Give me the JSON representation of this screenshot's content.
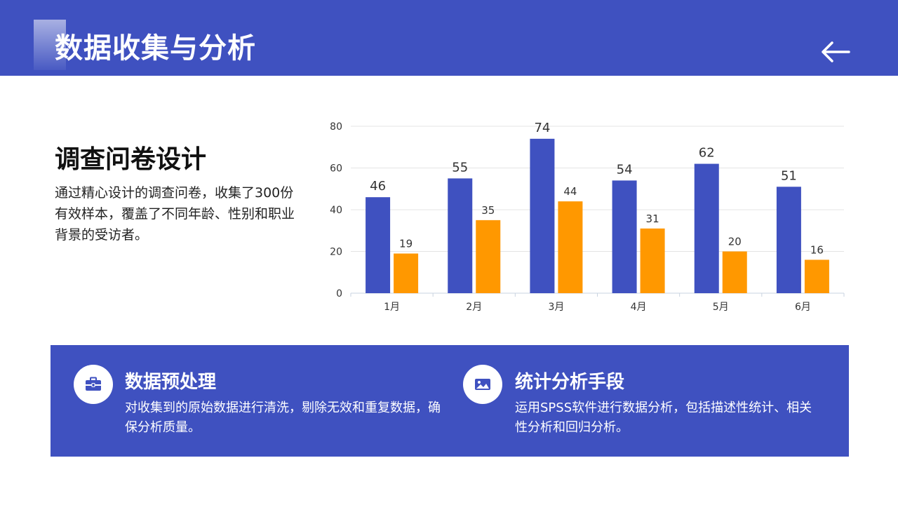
{
  "header": {
    "title": "数据收集与分析",
    "back_icon": "arrow-left-icon"
  },
  "survey": {
    "title": "调查问卷设计",
    "description": "通过精心设计的调查问卷，收集了300份有效样本，覆盖了不同年龄、性别和职业背景的受访者。"
  },
  "chart_data": {
    "type": "bar",
    "categories": [
      "1月",
      "2月",
      "3月",
      "4月",
      "5月",
      "6月"
    ],
    "series": [
      {
        "values": [
          46,
          55,
          74,
          54,
          62,
          51
        ],
        "color": "#3f51c0"
      },
      {
        "values": [
          19,
          35,
          44,
          31,
          20,
          16
        ],
        "color": "#ff9800"
      }
    ],
    "ylim": [
      0,
      80
    ],
    "yticks": [
      0,
      20,
      40,
      60,
      80
    ],
    "grid": true,
    "title": "",
    "xlabel": "",
    "ylabel": ""
  },
  "panel": {
    "items": [
      {
        "icon": "briefcase-icon",
        "title": "数据预处理",
        "text": "对收集到的原始数据进行清洗，剔除无效和重复数据，确保分析质量。"
      },
      {
        "icon": "image-icon",
        "title": "统计分析手段",
        "text": "运用SPSS软件进行数据分析，包括描述性统计、相关性分析和回归分析。"
      }
    ]
  },
  "colors": {
    "primary": "#3f51c0",
    "accent": "#ff9800"
  }
}
